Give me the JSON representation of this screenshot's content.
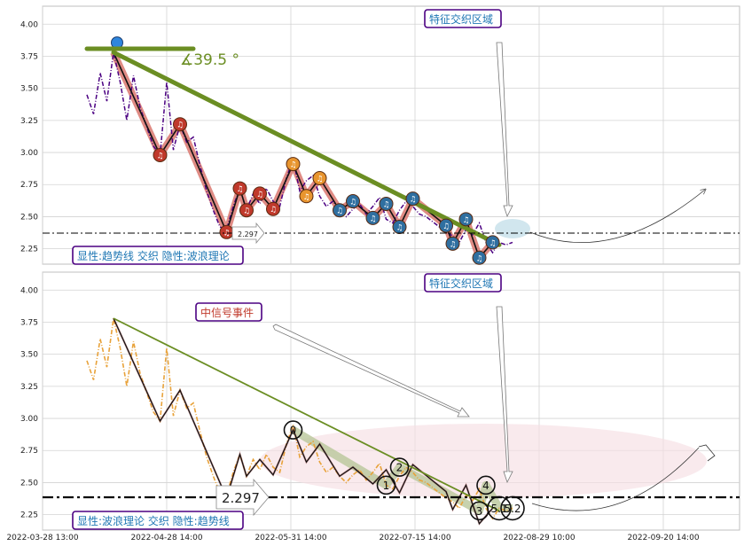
{
  "chart_data": [
    {
      "type": "line",
      "panel": "top",
      "ylim": [
        2.13,
        4.14
      ],
      "yticks": [
        "4.00",
        "3.75",
        "3.50",
        "3.25",
        "3.00",
        "2.75",
        "2.50",
        "2.25"
      ],
      "x_tick_labels": [
        "2022-03-28 13:00",
        "2022-04-28 14:00",
        "2022-05-31 14:00",
        "2022-07-15 14:00",
        "2022-08-29 10:00",
        "2022-09-20 14:00"
      ],
      "grid": true,
      "annotations": {
        "zone_box": "特征交织区域",
        "legend_box": "显性:趋势线 交织 隐性:波浪理论",
        "angle_label": "∡39.5 °",
        "support_label": "2.297",
        "support_value": 2.297
      },
      "price_series": [
        {
          "i": 0,
          "v": 3.45
        },
        {
          "i": 1,
          "v": 3.3
        },
        {
          "i": 2,
          "v": 3.62
        },
        {
          "i": 3,
          "v": 3.4
        },
        {
          "i": 4,
          "v": 3.78
        },
        {
          "i": 5,
          "v": 3.55
        },
        {
          "i": 6,
          "v": 3.25
        },
        {
          "i": 7,
          "v": 3.6
        },
        {
          "i": 8,
          "v": 3.35
        },
        {
          "i": 9,
          "v": 3.2
        },
        {
          "i": 10,
          "v": 3.05
        },
        {
          "i": 11,
          "v": 2.98
        },
        {
          "i": 12,
          "v": 3.55
        },
        {
          "i": 13,
          "v": 3.02
        },
        {
          "i": 14,
          "v": 3.22
        },
        {
          "i": 15,
          "v": 3.08
        },
        {
          "i": 16,
          "v": 3.12
        },
        {
          "i": 17,
          "v": 2.9
        },
        {
          "i": 18,
          "v": 2.7
        },
        {
          "i": 19,
          "v": 2.55
        },
        {
          "i": 20,
          "v": 2.42
        },
        {
          "i": 21,
          "v": 2.4
        },
        {
          "i": 22,
          "v": 2.58
        },
        {
          "i": 23,
          "v": 2.72
        },
        {
          "i": 24,
          "v": 2.55
        },
        {
          "i": 25,
          "v": 2.68
        },
        {
          "i": 26,
          "v": 2.6
        },
        {
          "i": 27,
          "v": 2.72
        },
        {
          "i": 28,
          "v": 2.62
        },
        {
          "i": 29,
          "v": 2.58
        },
        {
          "i": 30,
          "v": 2.8
        },
        {
          "i": 31,
          "v": 2.95
        },
        {
          "i": 32,
          "v": 2.7
        },
        {
          "i": 33,
          "v": 2.78
        },
        {
          "i": 34,
          "v": 2.82
        },
        {
          "i": 35,
          "v": 2.66
        },
        {
          "i": 36,
          "v": 2.58
        },
        {
          "i": 37,
          "v": 2.62
        },
        {
          "i": 38,
          "v": 2.55
        },
        {
          "i": 39,
          "v": 2.5
        },
        {
          "i": 40,
          "v": 2.56
        },
        {
          "i": 41,
          "v": 2.6
        },
        {
          "i": 42,
          "v": 2.52
        },
        {
          "i": 43,
          "v": 2.58
        },
        {
          "i": 44,
          "v": 2.65
        },
        {
          "i": 45,
          "v": 2.48
        },
        {
          "i": 46,
          "v": 2.45
        },
        {
          "i": 47,
          "v": 2.55
        },
        {
          "i": 48,
          "v": 2.62
        },
        {
          "i": 49,
          "v": 2.58
        },
        {
          "i": 50,
          "v": 2.52
        },
        {
          "i": 51,
          "v": 2.5
        },
        {
          "i": 52,
          "v": 2.46
        },
        {
          "i": 53,
          "v": 2.42
        },
        {
          "i": 54,
          "v": 2.38
        },
        {
          "i": 55,
          "v": 2.35
        },
        {
          "i": 56,
          "v": 2.3
        },
        {
          "i": 57,
          "v": 2.4
        },
        {
          "i": 58,
          "v": 2.36
        },
        {
          "i": 59,
          "v": 2.45
        },
        {
          "i": 60,
          "v": 2.3
        },
        {
          "i": 61,
          "v": 2.22
        },
        {
          "i": 62,
          "v": 2.3
        },
        {
          "i": 63,
          "v": 2.28
        },
        {
          "i": 64,
          "v": 2.3
        }
      ],
      "zigzag": [
        {
          "i": 4,
          "v": 3.78
        },
        {
          "i": 11,
          "v": 2.98
        },
        {
          "i": 14,
          "v": 3.22
        },
        {
          "i": 21,
          "v": 2.38
        },
        {
          "i": 23,
          "v": 2.72
        },
        {
          "i": 24,
          "v": 2.55
        },
        {
          "i": 26,
          "v": 2.68
        },
        {
          "i": 28,
          "v": 2.56
        },
        {
          "i": 31,
          "v": 2.91
        },
        {
          "i": 33,
          "v": 2.66
        },
        {
          "i": 35,
          "v": 2.8
        },
        {
          "i": 38,
          "v": 2.55
        },
        {
          "i": 40,
          "v": 2.62
        },
        {
          "i": 43,
          "v": 2.49
        },
        {
          "i": 45,
          "v": 2.6
        },
        {
          "i": 47,
          "v": 2.42
        },
        {
          "i": 49,
          "v": 2.64
        },
        {
          "i": 54,
          "v": 2.43
        },
        {
          "i": 55,
          "v": 2.29
        },
        {
          "i": 57,
          "v": 2.48
        },
        {
          "i": 59,
          "v": 2.18
        },
        {
          "i": 61,
          "v": 2.3
        }
      ],
      "trend_line": [
        {
          "i": 4,
          "v": 3.78
        },
        {
          "i": 62,
          "v": 2.28
        }
      ],
      "wave_labels": [
        "1",
        "2",
        "4",
        "2",
        "0"
      ]
    },
    {
      "type": "line",
      "panel": "bottom",
      "ylim": [
        2.13,
        4.14
      ],
      "yticks": [
        "4.00",
        "3.75",
        "3.50",
        "3.25",
        "3.00",
        "2.75",
        "2.50",
        "2.25"
      ],
      "grid": true,
      "annotations": {
        "zone_box": "特征交织区域",
        "event_box": "中信号事件",
        "legend_box": "显性:波浪理论 交织 隐性:趋势线",
        "support_label": "2.297",
        "support_value": 2.297
      },
      "wave_points": [
        {
          "label": "0",
          "i": 31,
          "v": 2.91
        },
        {
          "label": "1",
          "i": 45,
          "v": 2.48
        },
        {
          "label": "2",
          "i": 47,
          "v": 2.62
        },
        {
          "label": "3",
          "i": 59,
          "v": 2.28
        },
        {
          "label": "4",
          "i": 60,
          "v": 2.48
        },
        {
          "label": "5.1",
          "i": 62,
          "v": 2.3
        },
        {
          "label": "5.2",
          "i": 64,
          "v": 2.3
        }
      ]
    }
  ],
  "colors": {
    "trend": "#6b8e23",
    "zigzag_halo": "#d9776f",
    "price_top": "#4b0082",
    "price_bottom": "#e8a23a",
    "wave_halo": "#b9c79a",
    "ellipse": "#f6dfe4",
    "label_text": "#1f77b4",
    "event_text": "#c0392b",
    "box_border": "#4b0082"
  }
}
